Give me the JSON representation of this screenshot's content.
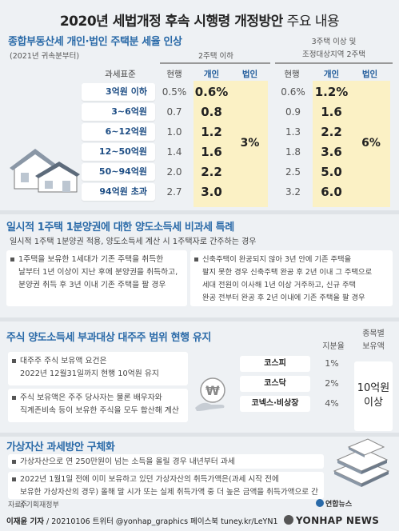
{
  "title": {
    "main": "2020년 세법개정 후속 시행령 개정방안",
    "suffix": " 주요 내용"
  },
  "section1": {
    "title": "종합부동산세 개인·법인 주택분 세율 인상",
    "note": "(2021년 귀속분부터)",
    "group_a": "2주택 이하",
    "group_b_line1": "3주택 이상 및",
    "group_b_line2": "조정대상지역 2주택",
    "headers": {
      "bracket": "과세표준",
      "current": "현행",
      "individual": "개인",
      "corporate": "법인"
    },
    "rows": [
      {
        "bracket": "3억원 이하",
        "a_cur": "0.5%",
        "a_ind": "0.6%",
        "b_cur": "0.6%",
        "b_ind": "1.2%"
      },
      {
        "bracket": "3~6억원",
        "a_cur": "0.7",
        "a_ind": "0.8",
        "b_cur": "0.9",
        "b_ind": "1.6"
      },
      {
        "bracket": "6~12억원",
        "a_cur": "1.0",
        "a_ind": "1.2",
        "b_cur": "1.3",
        "b_ind": "2.2"
      },
      {
        "bracket": "12~50억원",
        "a_cur": "1.4",
        "a_ind": "1.6",
        "b_cur": "1.8",
        "b_ind": "3.6"
      },
      {
        "bracket": "50~94억원",
        "a_cur": "2.0",
        "a_ind": "2.2",
        "b_cur": "2.5",
        "b_ind": "5.0"
      },
      {
        "bracket": "94억원 초과",
        "a_cur": "2.7",
        "a_ind": "3.0",
        "b_cur": "3.2",
        "b_ind": "6.0"
      }
    ],
    "a_corporate": "3%",
    "b_corporate": "6%"
  },
  "section2": {
    "title": "일시적 1주택 1분양권에 대한 양도소득세 비과세 특례",
    "subtitle": "일시적 1주택 1분양권 적용, 양도소득세 계산 시 1주택자로 간주하는 경우",
    "left": [
      "1주택을 보유한 1세대가 기존 주택을 취득한",
      "날부터 1년 이상이 지난 후에 분양권을 취득하고,",
      "분양권 취득 후 3년 이내 기존 주택을 팔 경우"
    ],
    "right": [
      "신축주택이 완공되지 않아 3년 안에 기존 주택을",
      "팔지 못한 경우 신축주택 완공 후 2년 이내 그 주택으로",
      "세대 전원이 이사해 1년 이상 거주하고, 신규 주택",
      "완공 전부터 완공 후 2년 이내에 기존 주택을 팔 경우"
    ]
  },
  "section3": {
    "title": "주식 양도소득세 부과대상 대주주 범위 현행 유지",
    "box1": [
      "대주주 주식 보유액 요건은",
      "2022년 12월31일까지 현행 10억원 유지"
    ],
    "box2": [
      "주식 보유액은 주주 당사자는 물론 배우자와",
      "직계존비속 등이 보유한 주식을 모두 합산해 계산"
    ],
    "col_share": "지분율",
    "col_amount_1": "종목별",
    "col_amount_2": "보유액",
    "markets": [
      {
        "name": "코스피",
        "share": "1%"
      },
      {
        "name": "코스닥",
        "share": "2%"
      },
      {
        "name": "코넥스·비상장",
        "share": "4%"
      }
    ],
    "amount_1": "10억원",
    "amount_2": "이상"
  },
  "section4": {
    "title": "가상자산 과세방안 구체화",
    "item1": "가상자산으로 연 250만원이 넘는 소득을 올릴 경우 내년부터 과세",
    "item2": [
      "2022년 1월1일 전에 이미 보유하고 있던 가상자산의 취득가액은(과세 시작 전에",
      "보유한 가상자산의 경우) 올해 말 시가 또는 실제 취득가액 중 더 높은 금액을 취득가액으로 간주"
    ]
  },
  "footer": {
    "source": "자료/ 기획재정부",
    "credit_name": "이재윤 기자",
    "credit_rest": " / 20210106   트위터 @yonhap_graphics  페이스북 tuney.kr/LeYN1",
    "brand": "연합뉴스",
    "news": "YONHAP NEWS"
  },
  "colors": {
    "accent": "#2a6aa8",
    "highlight": "#fbf1c5",
    "background": "#eef1f4"
  }
}
